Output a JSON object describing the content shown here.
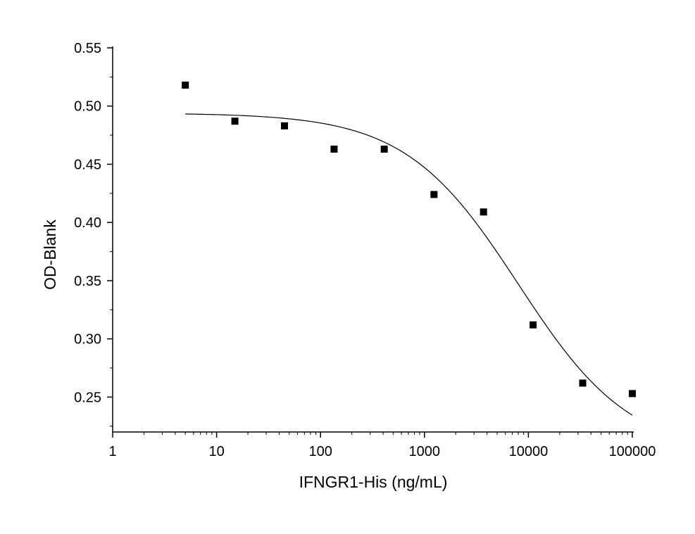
{
  "chart_data": {
    "type": "scatter",
    "xlabel": "IFNGR1-His (ng/mL)",
    "ylabel": "OD-Blank",
    "xscale": "log",
    "xlim": [
      1,
      100000
    ],
    "ylim": [
      0.22,
      0.55
    ],
    "xticks": [
      1,
      10,
      100,
      1000,
      10000,
      100000
    ],
    "xtick_labels": [
      "1",
      "10",
      "100",
      "1000",
      "10000",
      "100000"
    ],
    "yticks": [
      0.25,
      0.3,
      0.35,
      0.4,
      0.45,
      0.5,
      0.55
    ],
    "ytick_labels": [
      "0.25",
      "0.30",
      "0.35",
      "0.40",
      "0.45",
      "0.50",
      "0.55"
    ],
    "grid": false,
    "legend": "none",
    "series": [
      {
        "kind": "points",
        "marker": "square",
        "color": "#000000",
        "points": [
          {
            "x": 5,
            "y": 0.518
          },
          {
            "x": 15,
            "y": 0.487
          },
          {
            "x": 45,
            "y": 0.483
          },
          {
            "x": 135,
            "y": 0.463
          },
          {
            "x": 410,
            "y": 0.463
          },
          {
            "x": 1235,
            "y": 0.424
          },
          {
            "x": 3700,
            "y": 0.409
          },
          {
            "x": 11100,
            "y": 0.312
          },
          {
            "x": 33300,
            "y": 0.262
          },
          {
            "x": 100000,
            "y": 0.253
          }
        ]
      },
      {
        "kind": "fit",
        "color": "#000000",
        "model": "logistic",
        "top": 0.494,
        "bottom": 0.2,
        "ec50": 8000,
        "hill": 0.8,
        "x_range": [
          5,
          100000
        ]
      }
    ]
  }
}
